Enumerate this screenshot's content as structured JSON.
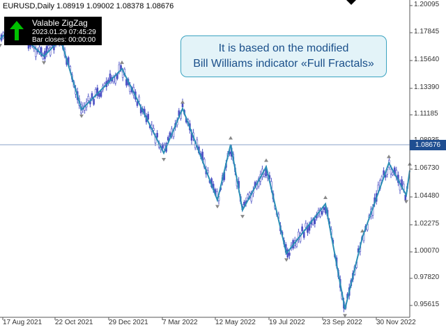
{
  "symbol_line": "EURUSD,Daily  1.08919 1.09002 1.08378 1.08676",
  "indicator_panel": {
    "title": "Valable ZigZag",
    "timestamp": "2023.01.29 07:45:29",
    "bar_closes": "Bar closes: 00:00:00",
    "arrow_icon": "up-arrow-icon",
    "arrow_color": "#00c000"
  },
  "callout": {
    "line1": "It is based on the modified",
    "line2": "Bill Williams indicator «Full Fractals»"
  },
  "price_axis": {
    "labels": [
      "1.20095",
      "1.17845",
      "1.15640",
      "1.13390",
      "1.11185",
      "1.08935",
      "1.06730",
      "1.04480",
      "1.02275",
      "1.00070",
      "0.97820",
      "0.95615"
    ],
    "current_price": "1.08676"
  },
  "time_axis": {
    "labels": [
      "17 Aug 2021",
      "22 Oct 2021",
      "29 Dec 2021",
      "7 Mar 2022",
      "12 May 2022",
      "19 Jul 2022",
      "23 Sep 2022",
      "30 Nov 2022"
    ]
  },
  "colors": {
    "candle": "#4a4fc4",
    "zigzag": "#2a8fb5",
    "grid": "#555555",
    "current_price_line": "#8aa0c8",
    "current_price_bg": "#1f4e91"
  },
  "chart_data": {
    "type": "line",
    "symbol": "EURUSD",
    "timeframe": "Daily",
    "ohlc_last": {
      "open": 1.08919,
      "high": 1.09002,
      "low": 1.08378,
      "close": 1.08676
    },
    "ylim": [
      0.9495,
      1.2055
    ],
    "x_ticks": [
      "17 Aug 2021",
      "22 Oct 2021",
      "29 Dec 2021",
      "7 Mar 2022",
      "12 May 2022",
      "19 Jul 2022",
      "23 Sep 2022",
      "30 Nov 2022"
    ],
    "series": [
      {
        "values": [
          1.174,
          1.184,
          1.16,
          1.174,
          1.117,
          1.15,
          1.082,
          1.118,
          1.044,
          1.089,
          1.036,
          1.071,
          1.001,
          1.041,
          0.956,
          1.014,
          1.074,
          1.048,
          1.068
        ]
      }
    ]
  }
}
